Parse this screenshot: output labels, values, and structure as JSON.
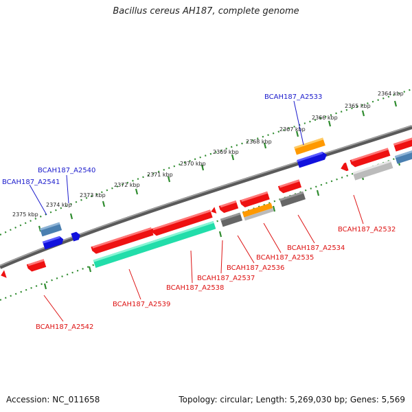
{
  "title": "Bacillus cereus AH187, complete genome",
  "footer": {
    "accession": "Accession: NC_011658",
    "summary": "Topology: circular; Length: 5,269,030 bp; Genes: 5,569"
  },
  "colors": {
    "backbone": "#7a7a7a",
    "scale_dots": "#2e8b2e",
    "label_plus": "#1a1acc",
    "label_minus": "#dd1111",
    "gene_red": "#ee1111",
    "gene_blue": "#1111dd",
    "gene_orange": "#ff9900",
    "gene_gray": "#666666",
    "gene_lightgray": "#bbbbbb",
    "gene_green": "#22ddaa",
    "gene_steelblue": "#4a7fb0"
  },
  "scale_labels": [
    "2364 kbp",
    "2365 kbp",
    "2366 kbp",
    "2367 kbp",
    "2368 kbp",
    "2369 kbp",
    "2370 kbp",
    "2371 kbp",
    "2372 kbp",
    "2373 kbp",
    "2374 kbp",
    "2375 kbp"
  ],
  "gene_labels": {
    "a2533": "BCAH187_A2533",
    "a2540": "BCAH187_A2540",
    "a2541": "BCAH187_A2541",
    "a2532": "BCAH187_A2532",
    "a2534": "BCAH187_A2534",
    "a2535": "BCAH187_A2535",
    "a2536": "BCAH187_A2536",
    "a2537": "BCAH187_A2537",
    "a2538": "BCAH187_A2538",
    "a2539": "BCAH187_A2539",
    "a2542": "BCAH187_A2542"
  }
}
